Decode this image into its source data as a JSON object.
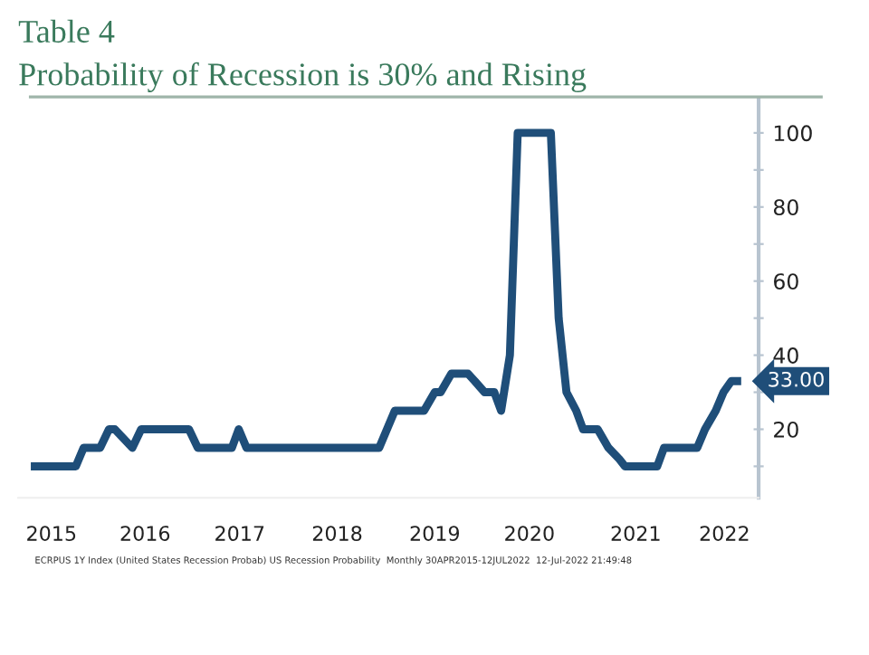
{
  "chart_data": {
    "type": "line",
    "title": "Table 4",
    "subtitle": "Probability of Recession is 30% and Rising",
    "x": [
      2015.33,
      2015.75,
      2015.83,
      2016.0,
      2016.09,
      2016.15,
      2016.33,
      2016.42,
      2016.91,
      2017.0,
      2017.35,
      2017.42,
      2017.5,
      2018.86,
      2019.02,
      2019.32,
      2019.43,
      2019.49,
      2019.6,
      2019.77,
      2019.84,
      2019.94,
      2020.04,
      2020.11,
      2020.2,
      2020.28,
      2020.62,
      2020.7,
      2020.78,
      2020.88,
      2020.95,
      2021.1,
      2021.21,
      2021.32,
      2021.38,
      2021.71,
      2021.78,
      2022.12,
      2022.2,
      2022.31,
      2022.39,
      2022.47,
      2022.53
    ],
    "series": [
      {
        "color": "#1f4e79",
        "values": [
          10,
          10,
          15,
          15,
          20,
          20,
          15,
          20,
          20,
          15,
          15,
          20,
          15,
          15,
          25,
          25,
          30,
          30,
          35,
          35,
          33,
          30,
          30,
          25,
          40,
          100,
          100,
          50,
          30,
          25,
          20,
          20,
          15,
          12,
          10,
          10,
          15,
          15,
          20,
          25,
          30,
          33,
          33
        ]
      }
    ],
    "xlim": [
      2015.16,
      2022.75
    ],
    "xticks": [
      {
        "value": 2015.5,
        "label": "2015"
      },
      {
        "value": 2016.46,
        "label": "2016"
      },
      {
        "value": 2017.43,
        "label": "2017"
      },
      {
        "value": 2018.43,
        "label": "2018"
      },
      {
        "value": 2019.43,
        "label": "2019"
      },
      {
        "value": 2020.4,
        "label": "2020"
      },
      {
        "value": 2021.49,
        "label": "2021"
      },
      {
        "value": 2022.4,
        "label": "2022"
      }
    ],
    "ylim": [
      1.5,
      109
    ],
    "yticks": [
      {
        "value": 10,
        "label": null
      },
      20,
      {
        "value": 30,
        "label": null
      },
      40,
      {
        "value": 50,
        "label": null
      },
      60,
      {
        "value": 70,
        "label": null
      },
      80,
      {
        "value": 90,
        "label": null
      },
      100
    ],
    "annotations": [
      {
        "text": "33.00",
        "x": 2022.53,
        "y": 33
      },
      "ECRPUS 1Y Index (United States Recession Probab) US Recession Probability  Monthly 30APR2015-12JUL2022  12-Jul-2022 21:49:48"
    ],
    "grid": false,
    "legend": false,
    "marker": "none",
    "line_style": "solid"
  }
}
